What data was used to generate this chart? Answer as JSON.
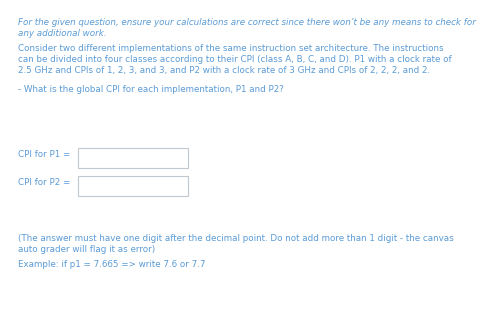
{
  "background_color": "#ffffff",
  "text_color": "#5b9bd5",
  "italic_line1": "For the given question, ensure your calculations are correct since there won’t be any means to check for",
  "italic_line2": "any additional work.",
  "line3": "Consider two different implementations of the same instruction set architecture. The instructions",
  "line4": "can be divided into four classes according to their CPI (class A, B, C, and D). P1 with a clock rate of",
  "line5": "2.5 GHz and CPIs of 1, 2, 3, and 3, and P2 with a clock rate of 3 GHz and CPIs of 2, 2, 2, and 2.",
  "question": "- What is the global CPI for each implementation, P1 and P2?",
  "label_p1": "CPI for P1 =",
  "label_p2": "CPI for P2 =",
  "footer1": "(The answer must have one digit after the decimal point. Do not add more than 1 digit - the canvas",
  "footer2": "auto grader will flag it as error)",
  "footer3": "Example: if p1 = 7.665 => write 7.6 or 7.7",
  "font_size": 6.3,
  "box_edge_color": "#c0c8d0",
  "box_face_color": "#ffffff"
}
